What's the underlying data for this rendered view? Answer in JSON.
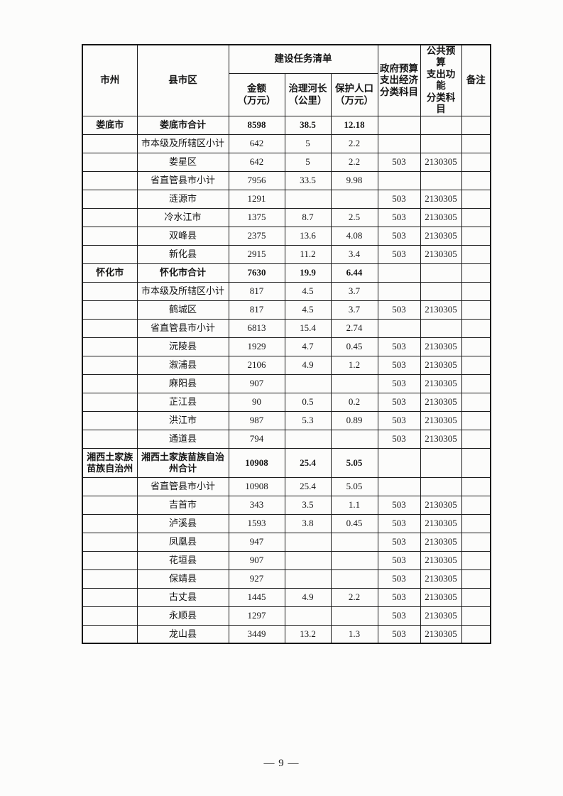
{
  "page": {
    "number_label": "— 9 —"
  },
  "table": {
    "header": {
      "region": "市州",
      "district": "县市区",
      "task_group": "建设任务清单",
      "amount": "金额\n（万元）",
      "river_length": "治理河长\n（公里）",
      "population": "保护人口\n（万元）",
      "econ_code": "政府预算\n支出经济\n分类科目",
      "func_code": "公共预算\n支出功能\n分类科目",
      "note": "备注"
    },
    "rows": [
      {
        "region": "娄底市",
        "district": "娄底市合计",
        "amount": "8598",
        "river_length": "38.5",
        "population": "12.18",
        "econ_code": "",
        "func_code": "",
        "note": "",
        "bold": true
      },
      {
        "region": "",
        "district": "市本级及所辖区小计",
        "amount": "642",
        "river_length": "5",
        "population": "2.2",
        "econ_code": "",
        "func_code": "",
        "note": ""
      },
      {
        "region": "",
        "district": "娄星区",
        "amount": "642",
        "river_length": "5",
        "population": "2.2",
        "econ_code": "503",
        "func_code": "2130305",
        "note": ""
      },
      {
        "region": "",
        "district": "省直管县市小计",
        "amount": "7956",
        "river_length": "33.5",
        "population": "9.98",
        "econ_code": "",
        "func_code": "",
        "note": ""
      },
      {
        "region": "",
        "district": "涟源市",
        "amount": "1291",
        "river_length": "",
        "population": "",
        "econ_code": "503",
        "func_code": "2130305",
        "note": ""
      },
      {
        "region": "",
        "district": "冷水江市",
        "amount": "1375",
        "river_length": "8.7",
        "population": "2.5",
        "econ_code": "503",
        "func_code": "2130305",
        "note": ""
      },
      {
        "region": "",
        "district": "双峰县",
        "amount": "2375",
        "river_length": "13.6",
        "population": "4.08",
        "econ_code": "503",
        "func_code": "2130305",
        "note": ""
      },
      {
        "region": "",
        "district": "新化县",
        "amount": "2915",
        "river_length": "11.2",
        "population": "3.4",
        "econ_code": "503",
        "func_code": "2130305",
        "note": ""
      },
      {
        "region": "怀化市",
        "district": "怀化市合计",
        "amount": "7630",
        "river_length": "19.9",
        "population": "6.44",
        "econ_code": "",
        "func_code": "",
        "note": "",
        "bold": true
      },
      {
        "region": "",
        "district": "市本级及所辖区小计",
        "amount": "817",
        "river_length": "4.5",
        "population": "3.7",
        "econ_code": "",
        "func_code": "",
        "note": ""
      },
      {
        "region": "",
        "district": "鹤城区",
        "amount": "817",
        "river_length": "4.5",
        "population": "3.7",
        "econ_code": "503",
        "func_code": "2130305",
        "note": ""
      },
      {
        "region": "",
        "district": "省直管县市小计",
        "amount": "6813",
        "river_length": "15.4",
        "population": "2.74",
        "econ_code": "",
        "func_code": "",
        "note": ""
      },
      {
        "region": "",
        "district": "沅陵县",
        "amount": "1929",
        "river_length": "4.7",
        "population": "0.45",
        "econ_code": "503",
        "func_code": "2130305",
        "note": ""
      },
      {
        "region": "",
        "district": "溆浦县",
        "amount": "2106",
        "river_length": "4.9",
        "population": "1.2",
        "econ_code": "503",
        "func_code": "2130305",
        "note": ""
      },
      {
        "region": "",
        "district": "麻阳县",
        "amount": "907",
        "river_length": "",
        "population": "",
        "econ_code": "503",
        "func_code": "2130305",
        "note": ""
      },
      {
        "region": "",
        "district": "芷江县",
        "amount": "90",
        "river_length": "0.5",
        "population": "0.2",
        "econ_code": "503",
        "func_code": "2130305",
        "note": ""
      },
      {
        "region": "",
        "district": "洪江市",
        "amount": "987",
        "river_length": "5.3",
        "population": "0.89",
        "econ_code": "503",
        "func_code": "2130305",
        "note": ""
      },
      {
        "region": "",
        "district": "通道县",
        "amount": "794",
        "river_length": "",
        "population": "",
        "econ_code": "503",
        "func_code": "2130305",
        "note": ""
      },
      {
        "region": "湘西土家族\n苗族自治州",
        "district": "湘西土家族苗族自治\n州合计",
        "amount": "10908",
        "river_length": "25.4",
        "population": "5.05",
        "econ_code": "",
        "func_code": "",
        "note": "",
        "bold": true,
        "tall": true
      },
      {
        "region": "",
        "district": "省直管县市小计",
        "amount": "10908",
        "river_length": "25.4",
        "population": "5.05",
        "econ_code": "",
        "func_code": "",
        "note": ""
      },
      {
        "region": "",
        "district": "吉首市",
        "amount": "343",
        "river_length": "3.5",
        "population": "1.1",
        "econ_code": "503",
        "func_code": "2130305",
        "note": ""
      },
      {
        "region": "",
        "district": "泸溪县",
        "amount": "1593",
        "river_length": "3.8",
        "population": "0.45",
        "econ_code": "503",
        "func_code": "2130305",
        "note": ""
      },
      {
        "region": "",
        "district": "凤凰县",
        "amount": "947",
        "river_length": "",
        "population": "",
        "econ_code": "503",
        "func_code": "2130305",
        "note": ""
      },
      {
        "region": "",
        "district": "花垣县",
        "amount": "907",
        "river_length": "",
        "population": "",
        "econ_code": "503",
        "func_code": "2130305",
        "note": ""
      },
      {
        "region": "",
        "district": "保靖县",
        "amount": "927",
        "river_length": "",
        "population": "",
        "econ_code": "503",
        "func_code": "2130305",
        "note": ""
      },
      {
        "region": "",
        "district": "古丈县",
        "amount": "1445",
        "river_length": "4.9",
        "population": "2.2",
        "econ_code": "503",
        "func_code": "2130305",
        "note": ""
      },
      {
        "region": "",
        "district": "永顺县",
        "amount": "1297",
        "river_length": "",
        "population": "",
        "econ_code": "503",
        "func_code": "2130305",
        "note": ""
      },
      {
        "region": "",
        "district": "龙山县",
        "amount": "3449",
        "river_length": "13.2",
        "population": "1.3",
        "econ_code": "503",
        "func_code": "2130305",
        "note": ""
      }
    ]
  }
}
